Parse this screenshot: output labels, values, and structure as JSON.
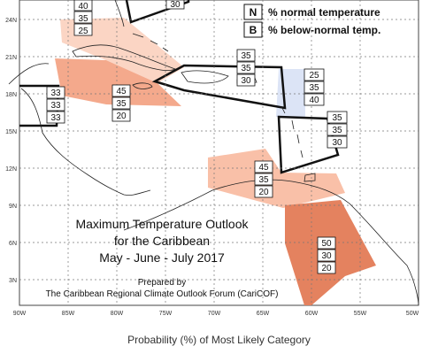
{
  "outlook": {
    "title_lines": [
      "Maximum Temperature Outlook",
      "for the Caribbean",
      "May - June - July 2017"
    ],
    "prepared_by": "Prepared by",
    "organization": "The Caribbean Regional Climate Outlook Forum (CariCOF)"
  },
  "legend": {
    "items": [
      {
        "key": "N",
        "text": "% normal temperature"
      },
      {
        "key": "B",
        "text": "% below-normal temp."
      }
    ]
  },
  "axes": {
    "lat_labels": [
      "24N",
      "21N",
      "18N",
      "15N",
      "12N",
      "9N",
      "6N",
      "3N"
    ],
    "lon_labels": [
      "90W",
      "85W",
      "80W",
      "75W",
      "70W",
      "65W",
      "60W",
      "55W",
      "50W"
    ]
  },
  "footer": {
    "caption": "Probability (%) of Most Likely Category"
  },
  "colors": {
    "above_light": "#fbd5c4",
    "above_medium": "#f4a98c",
    "above_strong": "#e4825f",
    "below_light": "#dce4f6",
    "land_outline": "#222222",
    "grid": "#777777"
  },
  "zones": [
    {
      "name": "top-center-partial",
      "probs": [
        "30"
      ]
    },
    {
      "name": "gulf-cuba-north",
      "probs": [
        "40",
        "35",
        "25"
      ]
    },
    {
      "name": "central-america",
      "probs": [
        "33",
        "33",
        "33"
      ]
    },
    {
      "name": "cuba-jamaica",
      "probs": [
        "45",
        "35",
        "20"
      ]
    },
    {
      "name": "hispaniola-puerto-rico",
      "probs": [
        "35",
        "35",
        "30"
      ]
    },
    {
      "name": "northern-leewards",
      "probs": [
        "25",
        "35",
        "40"
      ]
    },
    {
      "name": "windward-islands",
      "probs": [
        "35",
        "35",
        "30"
      ]
    },
    {
      "name": "abc-islands-venezuela",
      "probs": [
        "45",
        "35",
        "20"
      ]
    },
    {
      "name": "guianas",
      "probs": [
        "50",
        "30",
        "20"
      ]
    }
  ]
}
